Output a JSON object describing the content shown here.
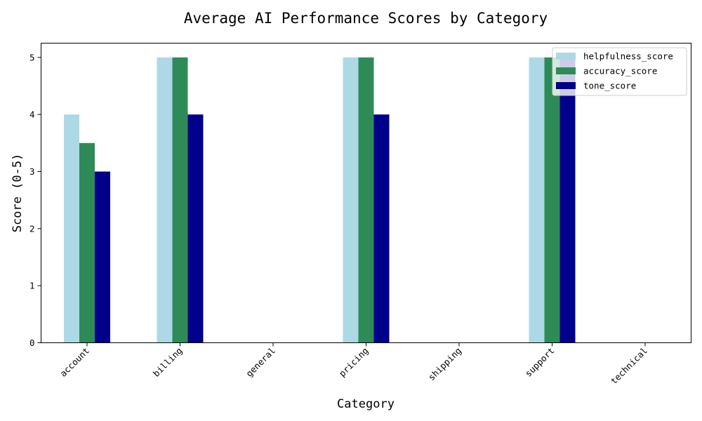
{
  "chart_data": {
    "type": "bar",
    "title": "Average AI Performance Scores by Category",
    "xlabel": "Category",
    "ylabel": "Score (0-5)",
    "ylim": [
      0,
      5.25
    ],
    "yticks": [
      0,
      1,
      2,
      3,
      4,
      5
    ],
    "categories": [
      "account",
      "billing",
      "general",
      "pricing",
      "shipping",
      "support",
      "technical"
    ],
    "series": [
      {
        "name": "helpfulness_score",
        "color": "#add8e6",
        "values": [
          4,
          5,
          null,
          5,
          null,
          5,
          null
        ]
      },
      {
        "name": "accuracy_score",
        "color": "#2e8b57",
        "values": [
          3.5,
          5,
          null,
          5,
          null,
          5,
          null
        ]
      },
      {
        "name": "tone_score",
        "color": "#00008b",
        "values": [
          3,
          4,
          null,
          4,
          null,
          5,
          null
        ]
      }
    ],
    "grid": false,
    "legend_position": "top-right"
  }
}
